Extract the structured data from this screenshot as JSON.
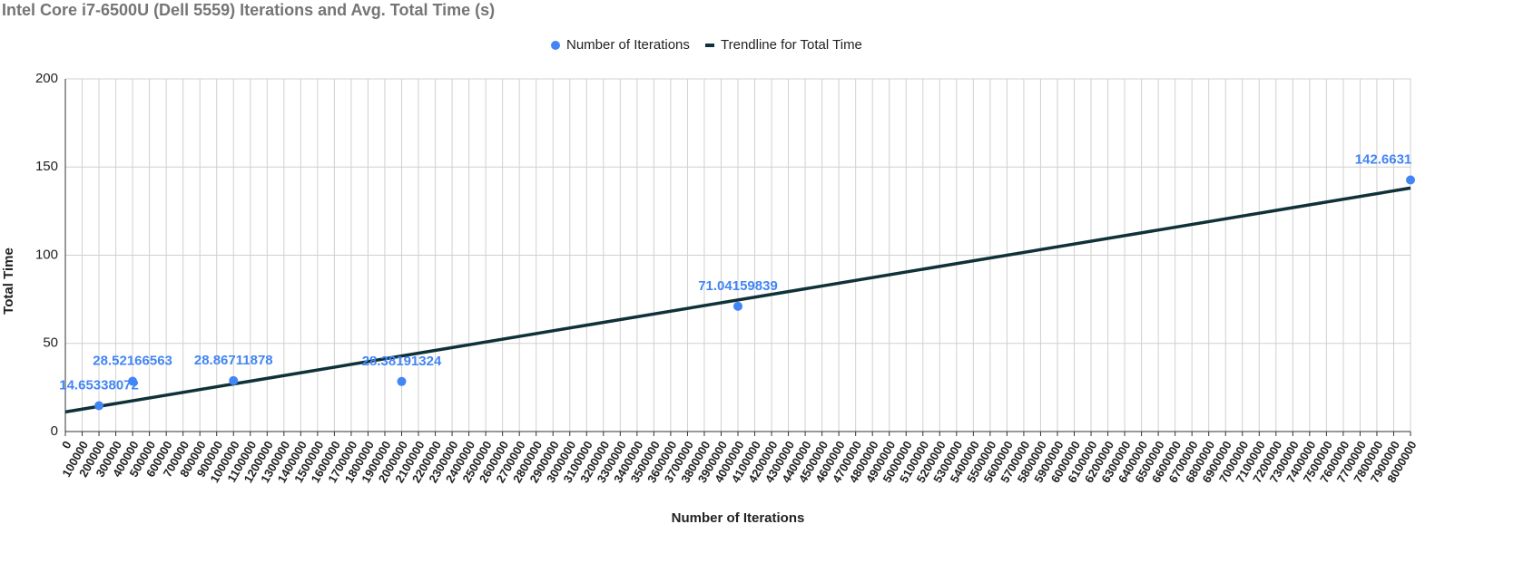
{
  "chart_data": {
    "type": "scatter",
    "title": "Intel Core i7-6500U (Dell 5559) Iterations and Avg. Total Time (s)",
    "x_label": "Number of Iterations",
    "y_label": "Total Time",
    "series": [
      {
        "name": "Number of Iterations",
        "color": "#4285f4",
        "kind": "points",
        "x": [
          200000,
          400000,
          1000000,
          2000000,
          4000000,
          8000000
        ],
        "values": [
          14.65338072,
          28.52166563,
          28.86711878,
          28.38191324,
          71.04159839,
          142.6631
        ]
      },
      {
        "name": "Trendline for Total Time",
        "color": "#0f3138",
        "kind": "line",
        "x": [
          0,
          8000000
        ],
        "values": [
          11.1,
          138.1
        ]
      }
    ],
    "xlim": [
      0,
      8000000
    ],
    "xticks": [
      0,
      100000,
      200000,
      300000,
      400000,
      500000,
      600000,
      700000,
      800000,
      900000,
      1000000,
      1100000,
      1200000,
      1300000,
      1400000,
      1500000,
      1600000,
      1700000,
      1800000,
      1900000,
      2000000,
      2100000,
      2200000,
      2300000,
      2400000,
      2500000,
      2600000,
      2700000,
      2800000,
      2900000,
      3000000,
      3100000,
      3200000,
      3300000,
      3400000,
      3500000,
      3600000,
      3700000,
      3800000,
      3900000,
      4000000,
      4100000,
      4200000,
      4300000,
      4400000,
      4500000,
      4600000,
      4700000,
      4800000,
      4900000,
      5000000,
      5100000,
      5200000,
      5300000,
      5400000,
      5500000,
      5600000,
      5700000,
      5800000,
      5900000,
      6000000,
      6100000,
      6200000,
      6300000,
      6400000,
      6500000,
      6600000,
      6700000,
      6800000,
      6900000,
      7000000,
      7100000,
      7200000,
      7300000,
      7400000,
      7500000,
      7600000,
      7700000,
      7800000,
      7900000,
      8000000
    ],
    "ylim": [
      0,
      200
    ],
    "yticks": [
      0,
      50,
      100,
      150,
      200
    ],
    "grid": true,
    "legend": "top"
  }
}
